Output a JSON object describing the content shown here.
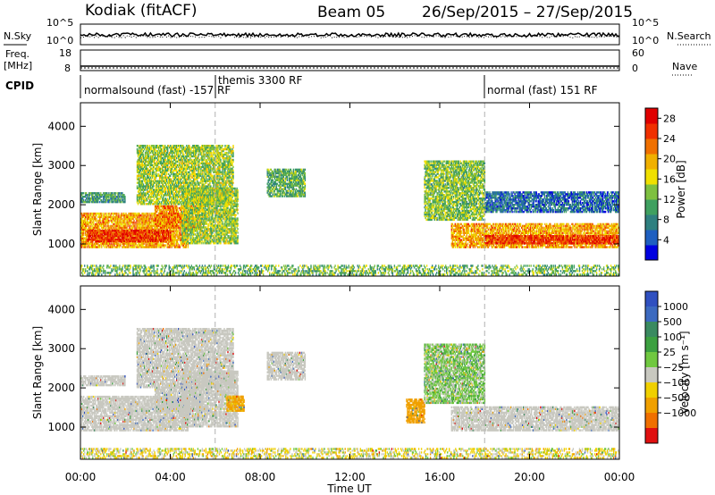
{
  "header": {
    "site": "Kodiak (fitACF)",
    "beam": "Beam 05",
    "dates": "26/Sep/2015 – 27/Sep/2015"
  },
  "status_panel": {
    "nsky_label": "N.Sky",
    "nsky_ticks": [
      "10^5",
      "10^0"
    ],
    "nsearch_label": "N.Search",
    "nsearch_ticks": [
      "10^5",
      "10^0"
    ],
    "freq_label": "Freq.",
    "freq_unit": "[MHz]",
    "freq_ticks": [
      "18",
      "8"
    ],
    "nave_label": "Nave",
    "nave_ticks": [
      "60",
      "0"
    ],
    "cpid_label": "CPID",
    "cpid_segments": [
      {
        "label": "normalsound (fast) -157 RF",
        "start": "00:00"
      },
      {
        "label": "themis 3300 RF",
        "start": "06:00"
      },
      {
        "label": "normal (fast) 151 RF",
        "start": "18:00"
      }
    ]
  },
  "colors": {
    "power_scale": [
      "#0000e0",
      "#1f5fc0",
      "#2f8080",
      "#3fa060",
      "#7ec040",
      "#f0e000",
      "#f0b000",
      "#f07000",
      "#f03000",
      "#e00000"
    ],
    "velocity_scale": [
      "#3050c0",
      "#3c6ac0",
      "#3a8a60",
      "#3ca040",
      "#70c840",
      "#c8c8c0",
      "#f0d000",
      "#f0a000",
      "#f07000",
      "#e01010"
    ]
  },
  "chart_data": [
    {
      "type": "heatmap",
      "name": "power",
      "ylabel": "Slant Range [km]",
      "xlim_hours": [
        0,
        24
      ],
      "ylim": [
        180,
        4600
      ],
      "yticks": [
        "1000",
        "2000",
        "3000",
        "4000"
      ],
      "colorbar_label": "Power [dB]",
      "colorbar_ticks": [
        "4",
        "8",
        "12",
        "16",
        "20",
        "24",
        "28"
      ],
      "colorbar_range": [
        0,
        30
      ],
      "bands": [
        {
          "t0": 0.0,
          "t1": 4.8,
          "r0": 900,
          "r1": 1800,
          "level": 20
        },
        {
          "t0": 0.3,
          "t1": 4.0,
          "r0": 1050,
          "r1": 1350,
          "level": 26
        },
        {
          "t0": 3.3,
          "t1": 5.5,
          "r0": 1400,
          "r1": 1950,
          "level": 22
        },
        {
          "t0": 4.5,
          "t1": 7.0,
          "r0": 1000,
          "r1": 2400,
          "level": 14
        },
        {
          "t0": 2.5,
          "t1": 6.8,
          "r0": 2000,
          "r1": 3500,
          "level": 14
        },
        {
          "t0": 0.0,
          "t1": 2.0,
          "r0": 2050,
          "r1": 2300,
          "level": 10
        },
        {
          "t0": 8.3,
          "t1": 10.0,
          "r0": 2200,
          "r1": 2900,
          "level": 11
        },
        {
          "t0": 15.3,
          "t1": 18.0,
          "r0": 1600,
          "r1": 3100,
          "level": 13
        },
        {
          "t0": 16.5,
          "t1": 24.0,
          "r0": 900,
          "r1": 1500,
          "level": 20
        },
        {
          "t0": 18.0,
          "t1": 24.0,
          "r0": 1000,
          "r1": 1200,
          "level": 26
        },
        {
          "t0": 18.0,
          "t1": 24.0,
          "r0": 1800,
          "r1": 2300,
          "level": 6
        },
        {
          "t0": 0.0,
          "t1": 24.0,
          "r0": 200,
          "r1": 450,
          "level": 12
        }
      ]
    },
    {
      "type": "heatmap",
      "name": "velocity",
      "xlabel": "Time UT",
      "ylabel": "Slant Range [km]",
      "xlim_hours": [
        0,
        24
      ],
      "ylim": [
        180,
        4600
      ],
      "xticks": [
        "00:00",
        "04:00",
        "08:00",
        "12:00",
        "16:00",
        "20:00",
        "00:00"
      ],
      "yticks": [
        "1000",
        "2000",
        "3000",
        "4000"
      ],
      "colorbar_label": "Velocity [m s⁻¹]",
      "colorbar_ticks": [
        "1000",
        "500",
        "100",
        "25",
        "−25",
        "−100",
        "−500",
        "−1000"
      ],
      "bands": [
        {
          "t0": 0.0,
          "t1": 4.8,
          "r0": 900,
          "r1": 1800,
          "level": 0
        },
        {
          "t0": 3.3,
          "t1": 5.5,
          "r0": 1400,
          "r1": 2000,
          "level": 0
        },
        {
          "t0": 4.5,
          "t1": 7.0,
          "r0": 1000,
          "r1": 2400,
          "level": 0
        },
        {
          "t0": 2.5,
          "t1": 6.8,
          "r0": 2000,
          "r1": 3500,
          "level": 0
        },
        {
          "t0": 0.0,
          "t1": 2.0,
          "r0": 2050,
          "r1": 2300,
          "level": 0
        },
        {
          "t0": 6.5,
          "t1": 7.3,
          "r0": 1400,
          "r1": 1800,
          "level": -150
        },
        {
          "t0": 8.3,
          "t1": 10.0,
          "r0": 2200,
          "r1": 2900,
          "level": 0
        },
        {
          "t0": 14.5,
          "t1": 15.3,
          "r0": 1100,
          "r1": 1700,
          "level": -400
        },
        {
          "t0": 15.3,
          "t1": 18.0,
          "r0": 1600,
          "r1": 3100,
          "level": 50
        },
        {
          "t0": 16.5,
          "t1": 24.0,
          "r0": 900,
          "r1": 1500,
          "level": 0
        },
        {
          "t0": 0.0,
          "t1": 24.0,
          "r0": 200,
          "r1": 450,
          "level": -30
        }
      ]
    }
  ]
}
